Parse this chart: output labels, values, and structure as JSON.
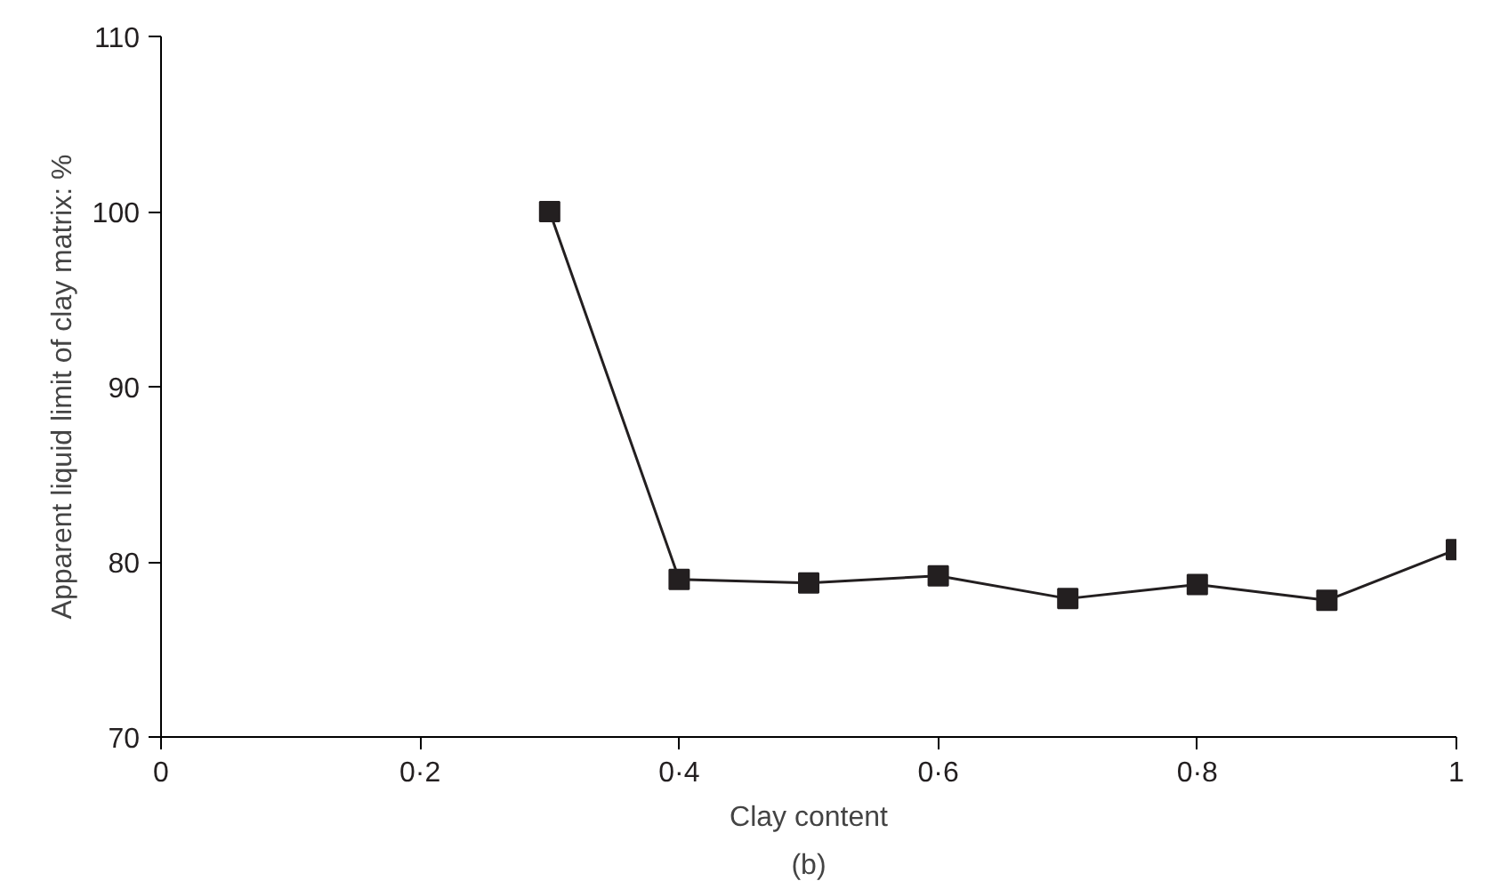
{
  "chart_data": {
    "type": "line",
    "xlabel": "Clay content",
    "ylabel": "Apparent liquid limit of clay matrix: %",
    "x": [
      0.3,
      0.4,
      0.5,
      0.6,
      0.7,
      0.8,
      0.9,
      1.0
    ],
    "series": [
      {
        "color": "#231f20",
        "values": [
          100,
          79.0,
          78.8,
          79.2,
          77.9,
          78.7,
          77.8,
          80.7
        ]
      }
    ],
    "xlim": [
      0,
      1
    ],
    "ylim": [
      70,
      110
    ],
    "xticks": [
      0,
      {
        "value": 0.2,
        "label": "0·2"
      },
      {
        "value": 0.4,
        "label": "0·4"
      },
      {
        "value": 0.6,
        "label": "0·6"
      },
      {
        "value": 0.8,
        "label": "0·8"
      },
      1
    ],
    "yticks": [
      70,
      80,
      90,
      100,
      110
    ],
    "marker": "square",
    "line_style": "solid",
    "grid": false,
    "annotations": [
      "(b)"
    ]
  }
}
